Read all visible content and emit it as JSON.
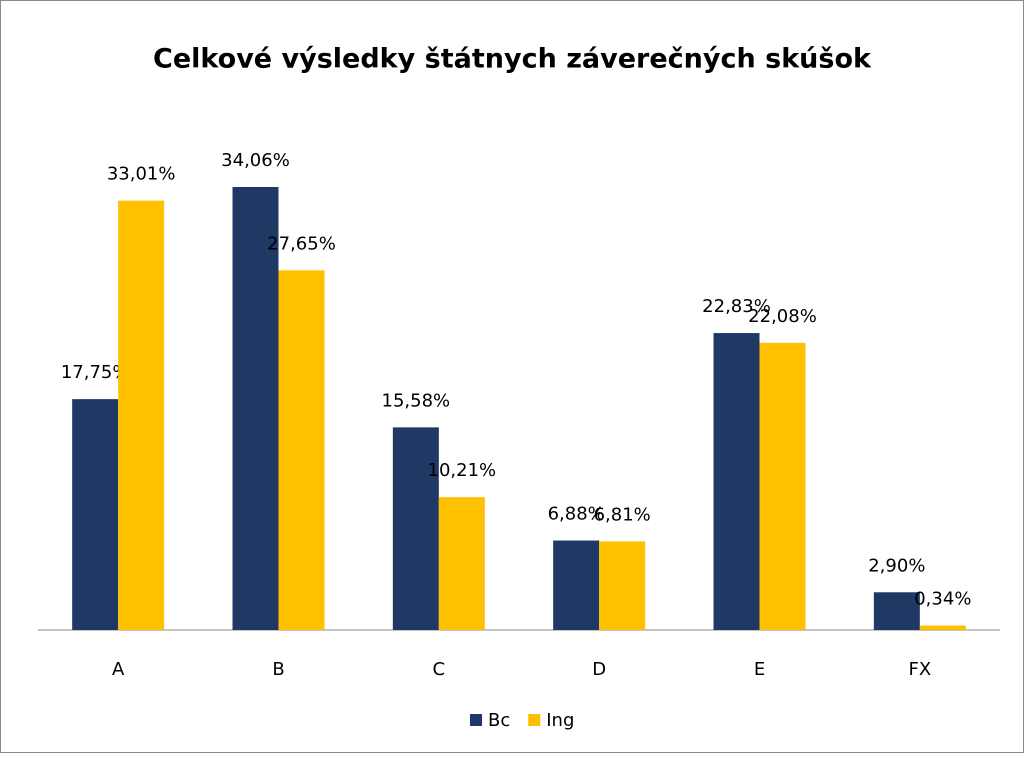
{
  "chart_data": {
    "type": "bar",
    "title": "Celkové výsledky štátnych záverečných skúšok",
    "categories": [
      "A",
      "B",
      "C",
      "D",
      "E",
      "FX"
    ],
    "series": [
      {
        "name": "Bc",
        "color": "#1f3864",
        "values": [
          17.75,
          34.06,
          15.58,
          6.88,
          22.83,
          2.9
        ],
        "value_labels": [
          "17,75%",
          "34,06%",
          "15,58%",
          "6,88%",
          "22,83%",
          "2,90%"
        ]
      },
      {
        "name": "Ing",
        "color": "#ffc000",
        "values": [
          33.01,
          27.65,
          10.21,
          6.81,
          22.08,
          0.34
        ],
        "value_labels": [
          "33,01%",
          "27,65%",
          "10,21%",
          "6,81%",
          "22,08%",
          "0,34%"
        ]
      }
    ],
    "legend": "bottom"
  }
}
